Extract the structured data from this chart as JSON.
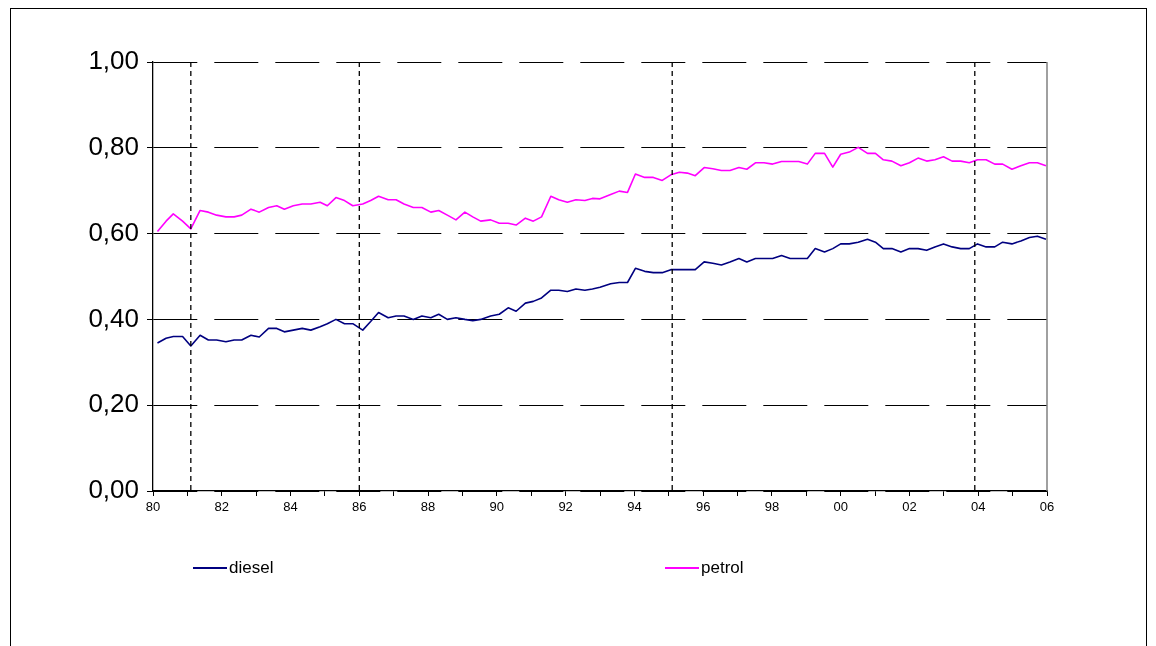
{
  "chart_data": {
    "type": "line",
    "x": [
      1980.13,
      1980.38,
      1980.59,
      1980.86,
      1981.1,
      1981.37,
      1981.61,
      1981.85,
      1982.12,
      1982.36,
      1982.58,
      1982.85,
      1983.09,
      1983.36,
      1983.6,
      1983.82,
      1984.08,
      1984.34,
      1984.59,
      1984.86,
      1985.07,
      1985.32,
      1985.57,
      1985.81,
      1986.1,
      1986.33,
      1986.56,
      1986.84,
      1987.07,
      1987.3,
      1987.57,
      1987.82,
      1988.08,
      1988.31,
      1988.56,
      1988.81,
      1989.07,
      1989.3,
      1989.53,
      1989.82,
      1990.07,
      1990.33,
      1990.56,
      1990.83,
      1991.06,
      1991.3,
      1991.57,
      1991.8,
      1992.05,
      1992.3,
      1992.56,
      1992.78,
      1993.0,
      1993.31,
      1993.56,
      1993.8,
      1994.03,
      1994.3,
      1994.55,
      1994.81,
      1995.06,
      1995.31,
      1995.54,
      1995.77,
      1996.03,
      1996.28,
      1996.53,
      1996.78,
      1997.04,
      1997.27,
      1997.52,
      1997.77,
      1998.02,
      1998.28,
      1998.53,
      1998.78,
      1999.03,
      1999.26,
      1999.53,
      1999.77,
      2000.0,
      2000.25,
      2000.51,
      2000.78,
      2001.01,
      2001.24,
      2001.49,
      2001.75,
      2002.0,
      2002.25,
      2002.5,
      2002.74,
      2002.99,
      2003.24,
      2003.49,
      2003.74,
      2003.98,
      2004.23,
      2004.48,
      2004.71,
      2004.98,
      2005.24,
      2005.49,
      2005.72,
      2005.97
    ],
    "series": [
      {
        "name": "diesel",
        "color": "#000080",
        "values": [
          0.345,
          0.356,
          0.36,
          0.36,
          0.338,
          0.363,
          0.352,
          0.352,
          0.348,
          0.352,
          0.352,
          0.363,
          0.359,
          0.379,
          0.379,
          0.371,
          0.375,
          0.379,
          0.375,
          0.383,
          0.39,
          0.4,
          0.39,
          0.39,
          0.375,
          0.395,
          0.416,
          0.404,
          0.408,
          0.408,
          0.4,
          0.408,
          0.404,
          0.412,
          0.4,
          0.404,
          0.4,
          0.397,
          0.4,
          0.408,
          0.412,
          0.427,
          0.419,
          0.438,
          0.442,
          0.45,
          0.468,
          0.468,
          0.465,
          0.471,
          0.468,
          0.471,
          0.475,
          0.483,
          0.486,
          0.486,
          0.519,
          0.512,
          0.509,
          0.509,
          0.516,
          0.516,
          0.516,
          0.516,
          0.534,
          0.531,
          0.527,
          0.534,
          0.542,
          0.534,
          0.542,
          0.542,
          0.542,
          0.549,
          0.542,
          0.542,
          0.542,
          0.565,
          0.557,
          0.565,
          0.576,
          0.576,
          0.58,
          0.587,
          0.58,
          0.565,
          0.565,
          0.557,
          0.565,
          0.565,
          0.561,
          0.569,
          0.576,
          0.569,
          0.565,
          0.565,
          0.576,
          0.569,
          0.569,
          0.58,
          0.576,
          0.583,
          0.591,
          0.594,
          0.587
        ]
      },
      {
        "name": "petrol",
        "color": "#ff00ff",
        "values": [
          0.605,
          0.629,
          0.646,
          0.629,
          0.611,
          0.654,
          0.65,
          0.643,
          0.639,
          0.639,
          0.643,
          0.657,
          0.65,
          0.661,
          0.665,
          0.657,
          0.665,
          0.669,
          0.669,
          0.673,
          0.665,
          0.684,
          0.677,
          0.665,
          0.669,
          0.677,
          0.687,
          0.679,
          0.679,
          0.669,
          0.661,
          0.661,
          0.65,
          0.654,
          0.643,
          0.632,
          0.65,
          0.639,
          0.629,
          0.632,
          0.624,
          0.624,
          0.62,
          0.636,
          0.629,
          0.639,
          0.687,
          0.679,
          0.673,
          0.679,
          0.677,
          0.682,
          0.681,
          0.691,
          0.699,
          0.696,
          0.739,
          0.731,
          0.731,
          0.724,
          0.737,
          0.743,
          0.741,
          0.735,
          0.754,
          0.751,
          0.747,
          0.747,
          0.754,
          0.75,
          0.765,
          0.765,
          0.762,
          0.768,
          0.768,
          0.768,
          0.762,
          0.787,
          0.787,
          0.755,
          0.785,
          0.79,
          0.801,
          0.787,
          0.787,
          0.772,
          0.769,
          0.758,
          0.765,
          0.776,
          0.769,
          0.772,
          0.779,
          0.769,
          0.769,
          0.765,
          0.772,
          0.772,
          0.762,
          0.762,
          0.75,
          0.758,
          0.765,
          0.765,
          0.758
        ]
      }
    ],
    "xlim": [
      1980,
      2006
    ],
    "xticks": [
      {
        "value": 1980,
        "label": "80"
      },
      {
        "value": 1981,
        "label": null
      },
      {
        "value": 1982,
        "label": "82"
      },
      {
        "value": 1983,
        "label": null
      },
      {
        "value": 1984,
        "label": "84"
      },
      {
        "value": 1985,
        "label": null
      },
      {
        "value": 1986,
        "label": "86"
      },
      {
        "value": 1987,
        "label": null
      },
      {
        "value": 1988,
        "label": "88"
      },
      {
        "value": 1989,
        "label": null
      },
      {
        "value": 1990,
        "label": "90"
      },
      {
        "value": 1991,
        "label": null
      },
      {
        "value": 1992,
        "label": "92"
      },
      {
        "value": 1993,
        "label": null
      },
      {
        "value": 1994,
        "label": "94"
      },
      {
        "value": 1995,
        "label": null
      },
      {
        "value": 1996,
        "label": "96"
      },
      {
        "value": 1997,
        "label": null
      },
      {
        "value": 1998,
        "label": "98"
      },
      {
        "value": 1999,
        "label": null
      },
      {
        "value": 2000,
        "label": "00"
      },
      {
        "value": 2001,
        "label": null
      },
      {
        "value": 2002,
        "label": "02"
      },
      {
        "value": 2003,
        "label": null
      },
      {
        "value": 2004,
        "label": "04"
      },
      {
        "value": 2005,
        "label": null
      },
      {
        "value": 2006,
        "label": "06"
      }
    ],
    "ylim": [
      0,
      1
    ],
    "yticks": [
      {
        "value": 0,
        "label": "0,00"
      },
      {
        "value": 0.2,
        "label": "0,20"
      },
      {
        "value": 0.4,
        "label": "0,40"
      },
      {
        "value": 0.6,
        "label": "0,60"
      },
      {
        "value": 0.8,
        "label": "0,80"
      },
      {
        "value": 1,
        "label": "1,00"
      }
    ],
    "grid": "y",
    "legend": "bottom",
    "marker": "none",
    "ref_lines": [
      {
        "axis": "x",
        "value": 1981.1,
        "color": "#000000",
        "line_style": "dashed"
      },
      {
        "axis": "x",
        "value": 1986,
        "color": "#000000",
        "line_style": "dashed"
      },
      {
        "axis": "x",
        "value": 1995.1,
        "color": "#000000",
        "line_style": "dashed"
      },
      {
        "axis": "x",
        "value": 2003.9,
        "color": "#000000",
        "line_style": "dashed"
      }
    ]
  }
}
